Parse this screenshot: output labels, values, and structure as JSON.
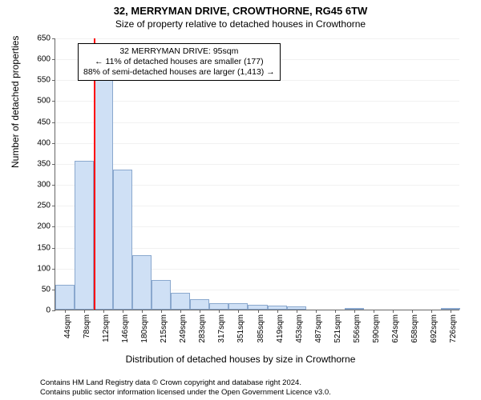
{
  "title": "32, MERRYMAN DRIVE, CROWTHORNE, RG45 6TW",
  "subtitle": "Size of property relative to detached houses in Crowthorne",
  "ylabel": "Number of detached properties",
  "xlabel": "Distribution of detached houses by size in Crowthorne",
  "chart": {
    "type": "histogram",
    "background_color": "#ffffff",
    "grid_color": "#e8e8e8",
    "bar_fill": "#cfe0f5",
    "bar_stroke": "#8aa8ce",
    "marker_color": "#ff0000",
    "marker_x_sqm": 95,
    "ylim": [
      0,
      650
    ],
    "ytick_step": 50,
    "x_start": 27,
    "x_bin_width": 34.17,
    "x_labels": [
      "44sqm",
      "78sqm",
      "112sqm",
      "146sqm",
      "180sqm",
      "215sqm",
      "249sqm",
      "283sqm",
      "317sqm",
      "351sqm",
      "385sqm",
      "419sqm",
      "453sqm",
      "487sqm",
      "521sqm",
      "556sqm",
      "590sqm",
      "624sqm",
      "658sqm",
      "692sqm",
      "726sqm"
    ],
    "values": [
      60,
      355,
      555,
      335,
      130,
      70,
      40,
      25,
      15,
      15,
      12,
      10,
      8,
      0,
      0,
      3,
      0,
      0,
      0,
      0,
      2
    ],
    "label_fontsize": 10,
    "axis_fontsize": 12
  },
  "annotation": {
    "line1": "32 MERRYMAN DRIVE: 95sqm",
    "line2": "← 11% of detached houses are smaller (177)",
    "line3": "88% of semi-detached houses are larger (1,413) →"
  },
  "footer": {
    "line1": "Contains HM Land Registry data © Crown copyright and database right 2024.",
    "line2": "Contains public sector information licensed under the Open Government Licence v3.0."
  }
}
